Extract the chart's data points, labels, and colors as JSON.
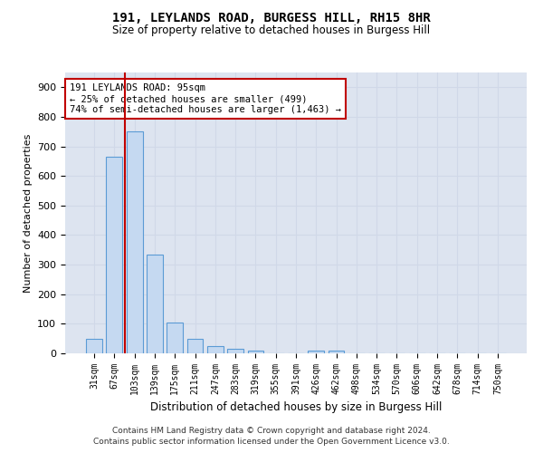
{
  "title_line1": "191, LEYLANDS ROAD, BURGESS HILL, RH15 8HR",
  "title_line2": "Size of property relative to detached houses in Burgess Hill",
  "xlabel": "Distribution of detached houses by size in Burgess Hill",
  "ylabel": "Number of detached properties",
  "footer_line1": "Contains HM Land Registry data © Crown copyright and database right 2024.",
  "footer_line2": "Contains public sector information licensed under the Open Government Licence v3.0.",
  "categories": [
    "31sqm",
    "67sqm",
    "103sqm",
    "139sqm",
    "175sqm",
    "211sqm",
    "247sqm",
    "283sqm",
    "319sqm",
    "355sqm",
    "391sqm",
    "426sqm",
    "462sqm",
    "498sqm",
    "534sqm",
    "570sqm",
    "606sqm",
    "642sqm",
    "678sqm",
    "714sqm",
    "750sqm"
  ],
  "values": [
    50,
    665,
    750,
    335,
    105,
    50,
    25,
    15,
    10,
    0,
    0,
    10,
    10,
    0,
    0,
    0,
    0,
    0,
    0,
    0,
    0
  ],
  "bar_color": "#c5d9f1",
  "bar_edge_color": "#5b9bd5",
  "bar_width": 0.8,
  "ylim": [
    0,
    950
  ],
  "yticks": [
    0,
    100,
    200,
    300,
    400,
    500,
    600,
    700,
    800,
    900
  ],
  "vline_x": 1.5,
  "vline_color": "#c00000",
  "annotation_text": "191 LEYLANDS ROAD: 95sqm\n← 25% of detached houses are smaller (499)\n74% of semi-detached houses are larger (1,463) →",
  "annotation_box_color": "#ffffff",
  "annotation_box_edge": "#c00000",
  "grid_color": "#d0d8e8",
  "background_color": "#dde4f0"
}
